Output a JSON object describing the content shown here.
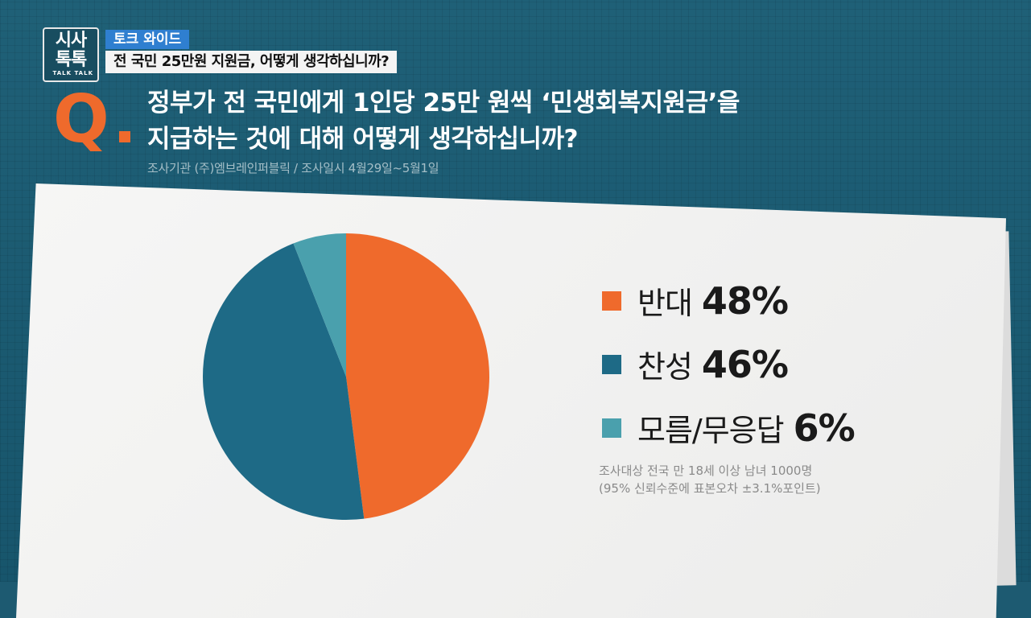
{
  "logo": {
    "line1": "시사",
    "line2": "톡톡",
    "line3": "TALK TALK"
  },
  "tag": "토크 와이드",
  "headline": "전 국민 25만원 지원금, 어떻게 생각하십니까?",
  "question": {
    "mark": "Q",
    "line1": "정부가 전 국민에게 1인당 25만 원씩 ‘민생회복지원금’을",
    "line2": "지급하는 것에 대해 어떻게 생각하십니까?"
  },
  "source": "조사기관 (주)엠브레인퍼블릭 / 조사일시 4월29일~5월1일",
  "notes": {
    "line1": "조사대상 전국 만 18세 이상 남녀 1000명",
    "line2": "(95% 신뢰수준에 표본오차 ±3.1%포인트)"
  },
  "colors": {
    "orange": "#ef6a2c",
    "teal_dark": "#1e6a86",
    "teal_light": "#4aa0ad",
    "background": "#1d5a71"
  },
  "chart_data": {
    "type": "pie",
    "title": "",
    "categories": [
      "반대",
      "찬성",
      "모름/무응답"
    ],
    "values": [
      48,
      46,
      6
    ],
    "value_labels": [
      "48%",
      "46%",
      "6%"
    ],
    "unit": "%",
    "start_angle": "12 o'clock, clockwise",
    "legend_position": "right",
    "colors": [
      "#ef6a2c",
      "#1e6a86",
      "#4aa0ad"
    ]
  }
}
